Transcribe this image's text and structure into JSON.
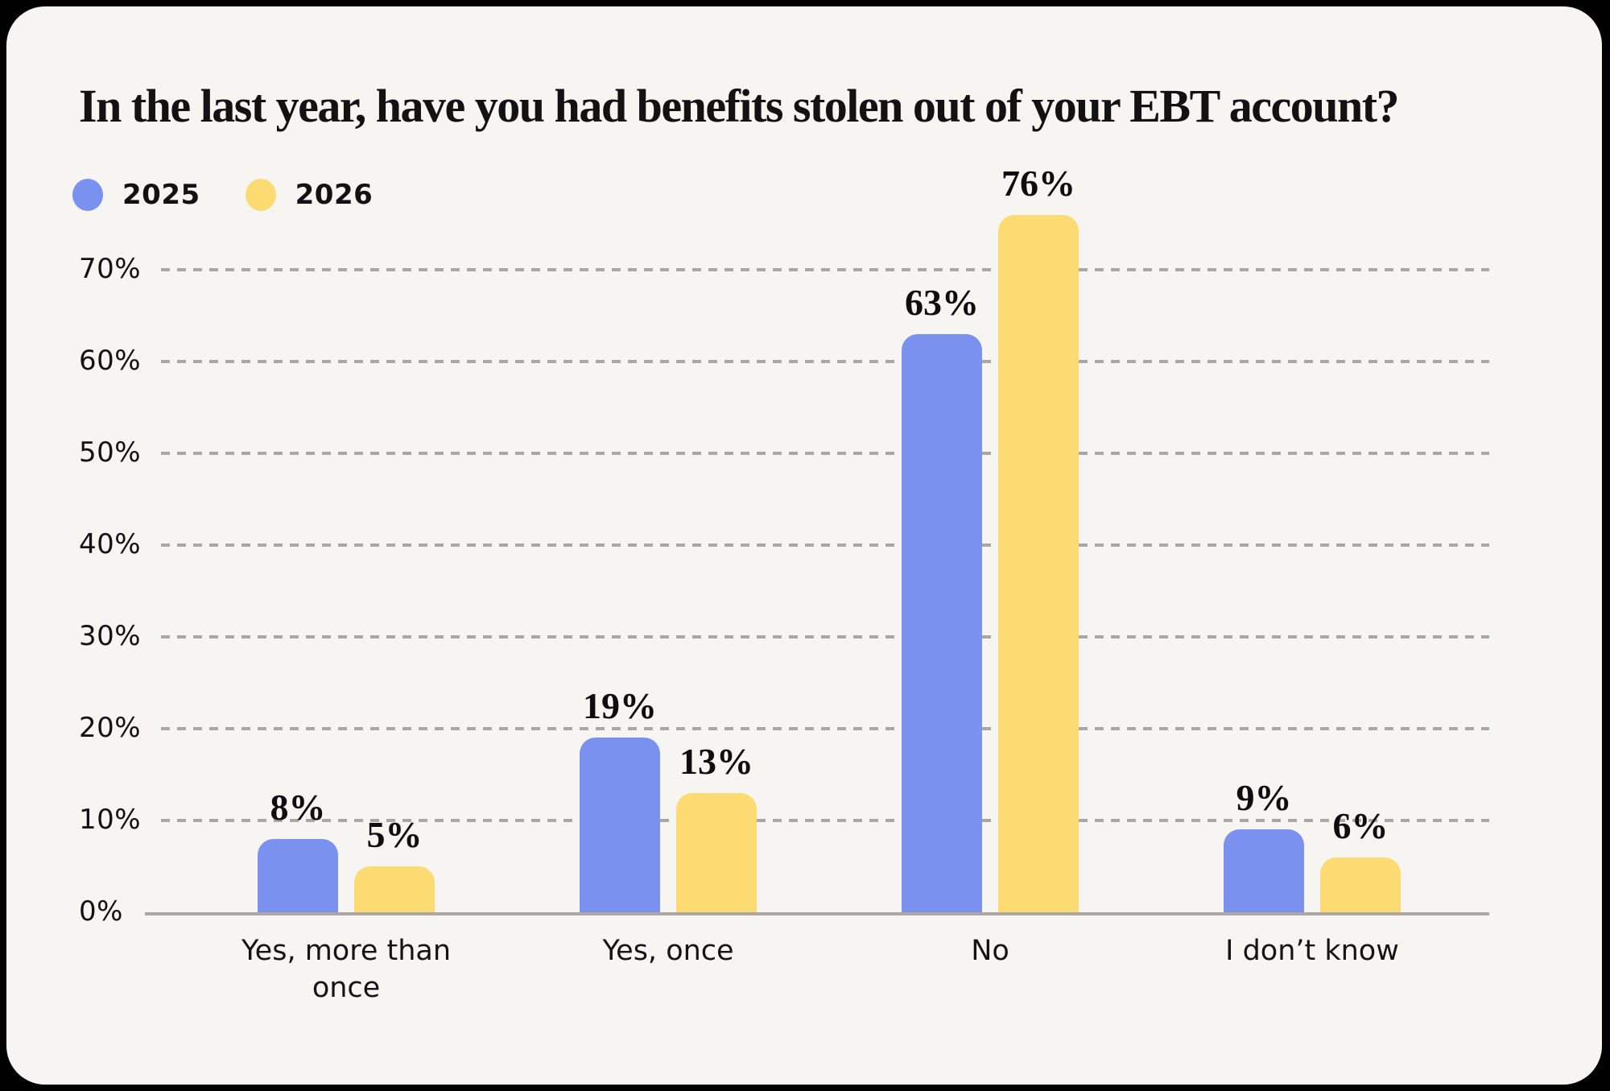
{
  "chart_data": {
    "type": "bar",
    "title": "In the last year, have you had benefits stolen out of your EBT account?",
    "categories": [
      "Yes, more than once",
      "Yes, once",
      "No",
      "I don’t know"
    ],
    "series": [
      {
        "name": "2025",
        "color": "#7A91F0",
        "values": [
          8,
          19,
          63,
          9
        ]
      },
      {
        "name": "2026",
        "color": "#FBDB72",
        "values": [
          5,
          13,
          76,
          6
        ]
      }
    ],
    "value_suffix": "%",
    "y_tick_values": [
      70,
      60,
      50,
      40,
      30,
      20,
      10,
      0
    ],
    "y_tick_suffix": "%",
    "ylim": [
      0,
      80
    ],
    "grid": "dashed-horizontal",
    "legend_position": "top-left",
    "background_color": "#F7F5F2",
    "page_background_color": "#000000"
  }
}
